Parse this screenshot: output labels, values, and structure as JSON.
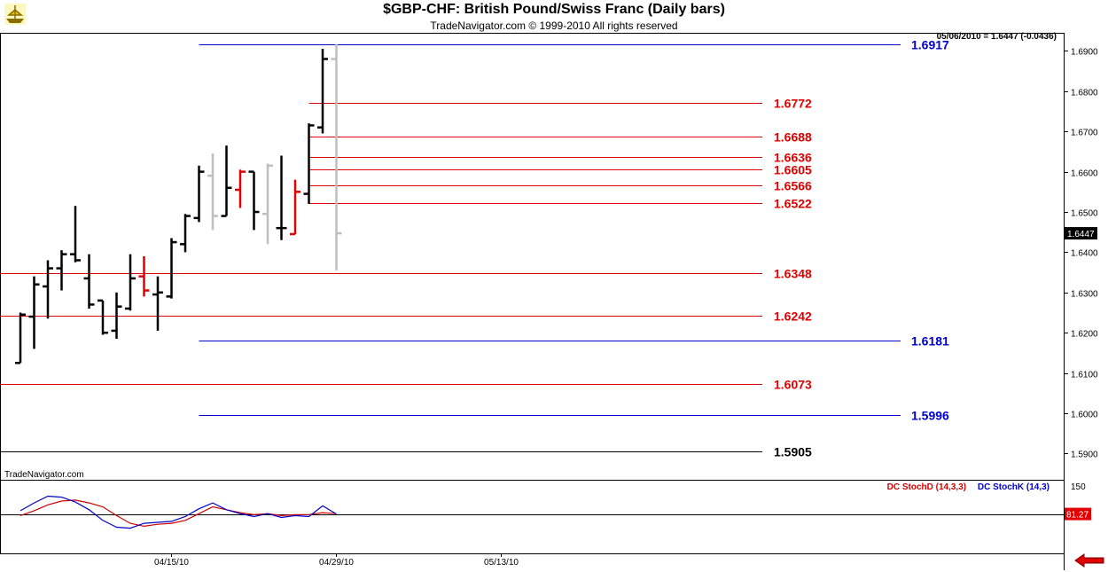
{
  "header": {
    "title": "$GBP-CHF:  British Pound/Swiss Franc  (Daily bars)",
    "subtitle": "TradeNavigator.com © 1999-2010 All rights reserved",
    "readout": "05/06/2010 = 1.6447 (-0.0436)",
    "watermark": "TradeNavigator.com"
  },
  "indicators": {
    "stochd_label": "DC StochD (14,3,3)",
    "stochk_label": "DC StochK (14,3)",
    "axis_top": "150",
    "last_value": "81.27"
  },
  "colors": {
    "up_bar": "#000000",
    "down_bar": "#bfbfbf",
    "highlight_bar": "#e00000",
    "red_level": "#e00000",
    "blue_level": "#0000cc",
    "black_level": "#000000",
    "price_tag_bg": "#000000",
    "stoch_d": "#d00000",
    "stoch_k": "#0000cc",
    "last_value_bg": "#e00000"
  },
  "chart_data": {
    "type": "ohlc",
    "price_axis": {
      "ticks": [
        "1.5900",
        "1.6000",
        "1.6100",
        "1.6200",
        "1.6300",
        "1.6400",
        "1.6500",
        "1.6600",
        "1.6700",
        "1.6800",
        "1.6900"
      ],
      "ylim": [
        1.587,
        1.6945
      ],
      "last_price": "1.6447"
    },
    "x_axis": {
      "tick_labels": [
        {
          "label": "04/15/10",
          "bar": 11
        },
        {
          "label": "04/29/10",
          "bar": 23
        },
        {
          "label": "05/13/10",
          "bar": 35
        }
      ]
    },
    "bars": [
      {
        "o": 1.6125,
        "h": 1.625,
        "l": 1.6125,
        "c": 1.6245,
        "color": "black"
      },
      {
        "o": 1.624,
        "h": 1.634,
        "l": 1.616,
        "c": 1.632,
        "color": "black"
      },
      {
        "o": 1.6315,
        "h": 1.638,
        "l": 1.6235,
        "c": 1.636,
        "color": "black"
      },
      {
        "o": 1.636,
        "h": 1.6405,
        "l": 1.6305,
        "c": 1.6395,
        "color": "black"
      },
      {
        "o": 1.6395,
        "h": 1.6515,
        "l": 1.6375,
        "c": 1.638,
        "color": "black"
      },
      {
        "o": 1.6335,
        "h": 1.6395,
        "l": 1.626,
        "c": 1.627,
        "color": "black"
      },
      {
        "o": 1.628,
        "h": 1.628,
        "l": 1.6195,
        "c": 1.62,
        "color": "black"
      },
      {
        "o": 1.6205,
        "h": 1.63,
        "l": 1.6185,
        "c": 1.6265,
        "color": "black"
      },
      {
        "o": 1.626,
        "h": 1.6395,
        "l": 1.6255,
        "c": 1.6335,
        "color": "black"
      },
      {
        "o": 1.634,
        "h": 1.639,
        "l": 1.629,
        "c": 1.6305,
        "color": "red"
      },
      {
        "o": 1.6295,
        "h": 1.634,
        "l": 1.6205,
        "c": 1.63,
        "color": "black"
      },
      {
        "o": 1.629,
        "h": 1.6435,
        "l": 1.6285,
        "c": 1.6425,
        "color": "black"
      },
      {
        "o": 1.642,
        "h": 1.6495,
        "l": 1.64,
        "c": 1.649,
        "color": "black"
      },
      {
        "o": 1.6485,
        "h": 1.6615,
        "l": 1.6475,
        "c": 1.66,
        "color": "black"
      },
      {
        "o": 1.659,
        "h": 1.6645,
        "l": 1.6455,
        "c": 1.649,
        "color": "gray"
      },
      {
        "o": 1.649,
        "h": 1.6665,
        "l": 1.649,
        "c": 1.656,
        "color": "black"
      },
      {
        "o": 1.6555,
        "h": 1.6605,
        "l": 1.651,
        "c": 1.66,
        "color": "red"
      },
      {
        "o": 1.66,
        "h": 1.66,
        "l": 1.6455,
        "c": 1.65,
        "color": "black"
      },
      {
        "o": 1.6495,
        "h": 1.662,
        "l": 1.642,
        "c": 1.6615,
        "color": "gray"
      },
      {
        "o": 1.646,
        "h": 1.664,
        "l": 1.643,
        "c": 1.646,
        "color": "black"
      },
      {
        "o": 1.6445,
        "h": 1.658,
        "l": 1.6445,
        "c": 1.655,
        "color": "red"
      },
      {
        "o": 1.6545,
        "h": 1.672,
        "l": 1.652,
        "c": 1.6715,
        "color": "black"
      },
      {
        "o": 1.671,
        "h": 1.6905,
        "l": 1.6695,
        "c": 1.688,
        "color": "black"
      },
      {
        "o": 1.688,
        "h": 1.6917,
        "l": 1.6355,
        "c": 1.6447,
        "color": "gray"
      }
    ],
    "levels": [
      {
        "value": "1.6917",
        "color": "blue",
        "from_bar": 13
      },
      {
        "value": "1.6772",
        "color": "red",
        "from_bar": 21
      },
      {
        "value": "1.6688",
        "color": "red",
        "from_bar": 21
      },
      {
        "value": "1.6636",
        "color": "red",
        "from_bar": 21
      },
      {
        "value": "1.6605",
        "color": "red",
        "from_bar": 21
      },
      {
        "value": "1.6566",
        "color": "red",
        "from_bar": 21
      },
      {
        "value": "1.6522",
        "color": "red",
        "from_bar": 21
      },
      {
        "value": "1.6348",
        "color": "red",
        "from_bar": -1
      },
      {
        "value": "1.6242",
        "color": "red",
        "from_bar": -1
      },
      {
        "value": "1.6181",
        "color": "blue",
        "from_bar": 13
      },
      {
        "value": "1.6073",
        "color": "red",
        "from_bar": -1
      },
      {
        "value": "1.5996",
        "color": "blue",
        "from_bar": 13
      },
      {
        "value": "1.5905",
        "color": "black",
        "from_bar": -1
      }
    ],
    "stochastics": {
      "ylim": [
        0,
        150
      ],
      "stoch_d": [
        78,
        88,
        100,
        108,
        110,
        104,
        96,
        78,
        62,
        56,
        60,
        62,
        68,
        82,
        96,
        90,
        84,
        80,
        82,
        78,
        80,
        80,
        84,
        82
      ],
      "stoch_k": [
        88,
        104,
        118,
        116,
        106,
        90,
        68,
        54,
        52,
        62,
        64,
        66,
        76,
        92,
        104,
        90,
        82,
        76,
        82,
        74,
        78,
        76,
        98,
        81.27
      ]
    }
  }
}
